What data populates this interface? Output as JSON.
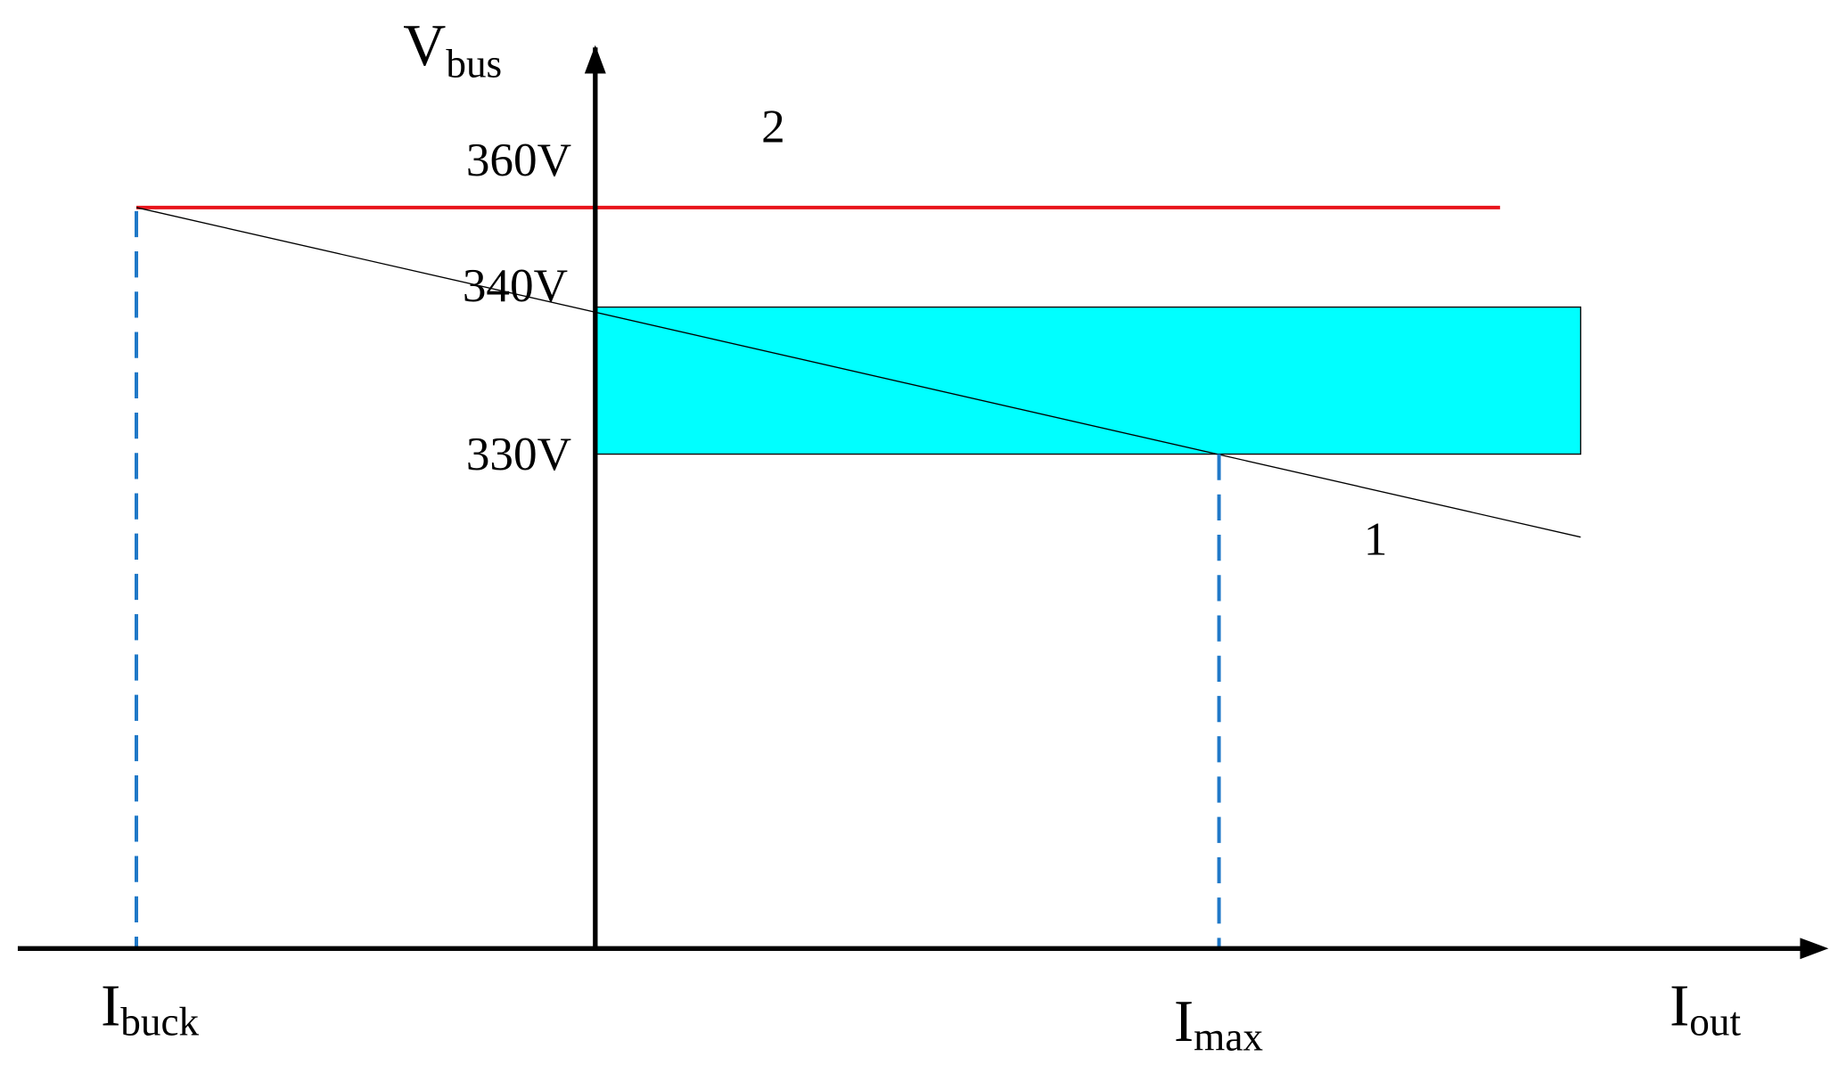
{
  "axes": {
    "y_label": {
      "main": "V",
      "sub": "bus"
    },
    "x_label": {
      "main": "I",
      "sub": "out"
    }
  },
  "voltage_labels": [
    "360V",
    "340V",
    "330V"
  ],
  "curve_labels": [
    "2",
    "1"
  ],
  "current_labels": [
    {
      "main": "I",
      "sub": "buck"
    },
    {
      "main": "I",
      "sub": "max"
    }
  ]
}
